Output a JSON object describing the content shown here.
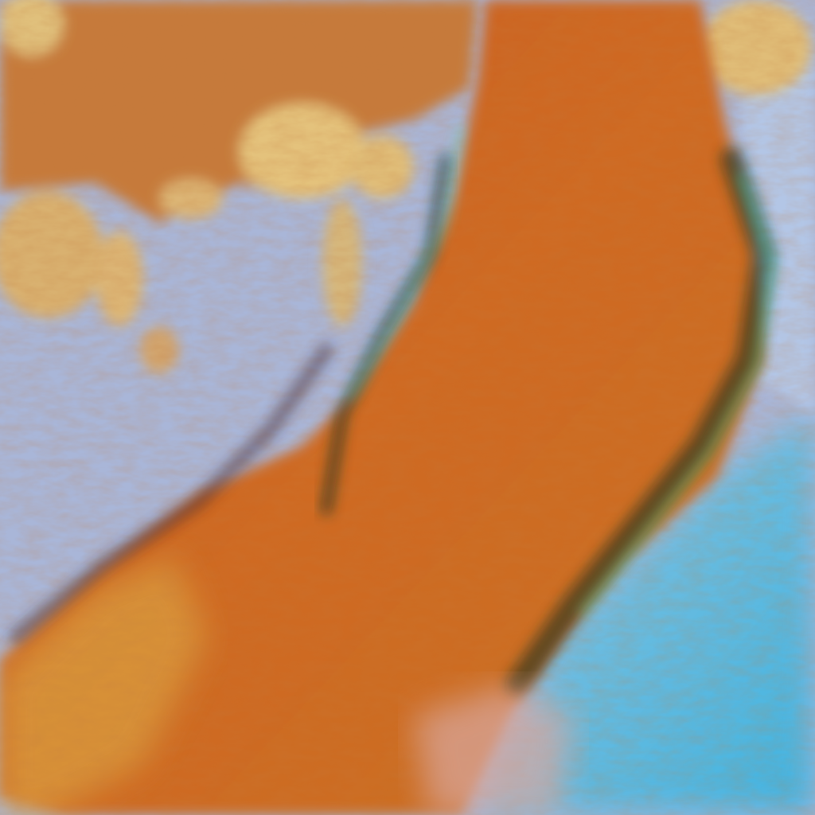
{
  "image": {
    "kind": "false-color satellite imagery",
    "colors": {
      "background_clear": "#a9b6d8",
      "cloud_band": "#c65a1c",
      "cloud_band_light": "#d9852e",
      "low_cloud": "#e3c27a",
      "cloud_edge": "#3fe0a0",
      "shadow": "#0e2a1e",
      "lower_right_sky": "#49b9df"
    }
  }
}
